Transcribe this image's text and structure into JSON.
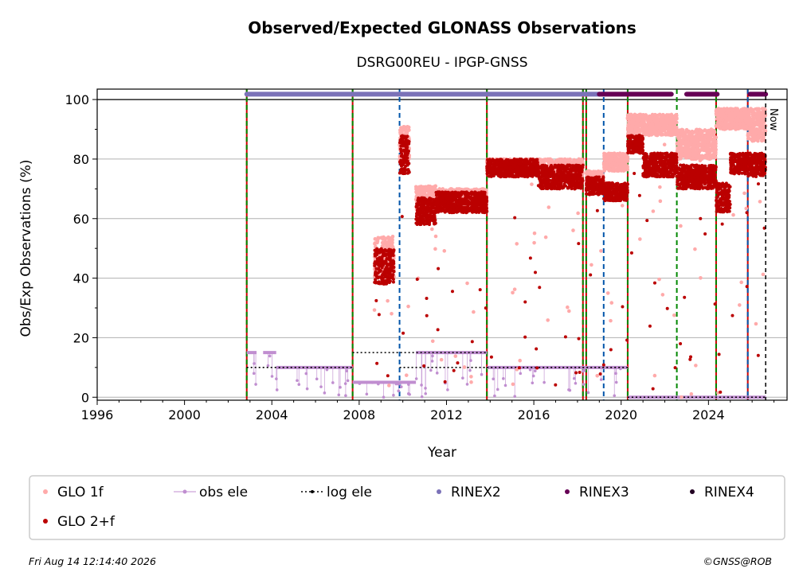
{
  "header": {
    "title": "Observed/Expected GLONASS Observations",
    "subtitle": "DSRG00REU - IPGP-GNSS"
  },
  "footer": {
    "timestamp": "Fri Aug 14 12:14:40 2026",
    "copyright": "©GNSS@ROB"
  },
  "chart_data": {
    "type": "scatter",
    "xlabel": "Year",
    "ylabel": "Obs/Exp Observations (%)",
    "xlim": [
      1996,
      2027.6
    ],
    "ylim": [
      -1,
      103.5
    ],
    "xticks": [
      1996,
      2000,
      2004,
      2008,
      2012,
      2016,
      2020,
      2024
    ],
    "yticks": [
      0,
      20,
      40,
      60,
      80,
      100
    ],
    "grid": "horizontal",
    "now_label": "Now",
    "now_x": 2026.62,
    "legend": {
      "placement": "bottom",
      "entries": [
        {
          "name": "GLO 1f",
          "color": "#ffaaaa",
          "marker": "dot"
        },
        {
          "name": "obs ele",
          "color": "#c08ed0",
          "marker": "line-dot"
        },
        {
          "name": "log ele",
          "color": "#000000",
          "marker": "dotted-line"
        },
        {
          "name": "RINEX2",
          "color": "#7b72b8",
          "marker": "dot"
        },
        {
          "name": "RINEX3",
          "color": "#660055",
          "marker": "dot"
        },
        {
          "name": "RINEX4",
          "color": "#220022",
          "marker": "dot"
        },
        {
          "name": "GLO 2+f",
          "color": "#bb0000",
          "marker": "dot"
        }
      ]
    },
    "event_lines": [
      {
        "x": 2002.85,
        "color": "#008800",
        "style": "dashed",
        "overlay": "#cc0000"
      },
      {
        "x": 2007.7,
        "color": "#008800",
        "style": "dashed",
        "overlay": "#cc0000"
      },
      {
        "x": 2009.85,
        "color": "#0055aa",
        "style": "dashed"
      },
      {
        "x": 2013.85,
        "color": "#008800",
        "style": "dashed",
        "overlay": "#cc0000"
      },
      {
        "x": 2018.25,
        "color": "#008800",
        "style": "dashed",
        "overlay": "#cc0000"
      },
      {
        "x": 2018.4,
        "color": "#008800",
        "style": "dashed",
        "overlay": "#cc0000"
      },
      {
        "x": 2019.2,
        "color": "#0055aa",
        "style": "dashed"
      },
      {
        "x": 2020.3,
        "color": "#008800",
        "style": "dashed",
        "overlay": "#cc0000"
      },
      {
        "x": 2022.55,
        "color": "#008800",
        "style": "dashed"
      },
      {
        "x": 2024.35,
        "color": "#008800",
        "style": "dashed",
        "overlay": "#cc0000"
      },
      {
        "x": 2025.8,
        "color": "#0055aa",
        "style": "dashed",
        "overlay": "#cc0000"
      }
    ],
    "log_ele": [
      {
        "x0": 2002.85,
        "x1": 2007.7,
        "y": 10
      },
      {
        "x0": 2007.7,
        "x1": 2013.85,
        "y": 15
      },
      {
        "x0": 2009.85,
        "x1": 2013.85,
        "y": 10
      },
      {
        "x0": 2013.85,
        "x1": 2020.3,
        "y": 10
      },
      {
        "x0": 2020.3,
        "x1": 2026.62,
        "y": 0
      }
    ],
    "obs_ele": [
      {
        "x0": 2002.85,
        "x1": 2003.3,
        "y": 15
      },
      {
        "x0": 2003.6,
        "x1": 2004.2,
        "y": 15
      },
      {
        "x0": 2004.2,
        "x1": 2007.7,
        "y": 10
      },
      {
        "x0": 2007.7,
        "x1": 2010.6,
        "y": 5
      },
      {
        "x0": 2010.6,
        "x1": 2013.85,
        "y": 15
      },
      {
        "x0": 2013.85,
        "x1": 2020.3,
        "y": 10
      },
      {
        "x0": 2020.3,
        "x1": 2026.62,
        "y": 0
      }
    ],
    "rinex_bars": [
      {
        "format": "RINEX2",
        "x0": 2002.85,
        "x1": 2019.0,
        "y": 101.8
      },
      {
        "format": "RINEX3",
        "x0": 2019.0,
        "x1": 2022.3,
        "y": 101.8
      },
      {
        "format": "RINEX3",
        "x0": 2023.0,
        "x1": 2024.4,
        "y": 101.8
      },
      {
        "format": "RINEX3",
        "x0": 2025.9,
        "x1": 2026.62,
        "y": 101.8
      }
    ],
    "glo_1f_segments": [
      {
        "x0": 2008.7,
        "x1": 2009.6,
        "ymin": 40,
        "ymax": 54
      },
      {
        "x0": 2009.85,
        "x1": 2010.3,
        "ymin": 78,
        "ymax": 91
      },
      {
        "x0": 2010.6,
        "x1": 2011.5,
        "ymin": 62,
        "ymax": 71
      },
      {
        "x0": 2011.5,
        "x1": 2013.85,
        "ymin": 64,
        "ymax": 70
      },
      {
        "x0": 2013.85,
        "x1": 2016.2,
        "ymin": 76,
        "ymax": 80
      },
      {
        "x0": 2016.2,
        "x1": 2018.25,
        "ymin": 74,
        "ymax": 80
      },
      {
        "x0": 2018.4,
        "x1": 2019.2,
        "ymin": 70,
        "ymax": 76
      },
      {
        "x0": 2019.2,
        "x1": 2020.3,
        "ymin": 76,
        "ymax": 82
      },
      {
        "x0": 2020.3,
        "x1": 2022.55,
        "ymin": 88,
        "ymax": 95
      },
      {
        "x0": 2022.55,
        "x1": 2024.35,
        "ymin": 80,
        "ymax": 90
      },
      {
        "x0": 2024.35,
        "x1": 2025.8,
        "ymin": 90,
        "ymax": 97
      },
      {
        "x0": 2025.8,
        "x1": 2026.62,
        "ymin": 86,
        "ymax": 97
      }
    ],
    "glo_2f_segments": [
      {
        "x0": 2008.7,
        "x1": 2009.6,
        "ymin": 38,
        "ymax": 50
      },
      {
        "x0": 2009.85,
        "x1": 2010.3,
        "ymin": 75,
        "ymax": 88
      },
      {
        "x0": 2010.6,
        "x1": 2011.5,
        "ymin": 58,
        "ymax": 67
      },
      {
        "x0": 2011.5,
        "x1": 2013.85,
        "ymin": 62,
        "ymax": 69
      },
      {
        "x0": 2013.85,
        "x1": 2016.2,
        "ymin": 74,
        "ymax": 80
      },
      {
        "x0": 2016.2,
        "x1": 2018.25,
        "ymin": 70,
        "ymax": 78
      },
      {
        "x0": 2018.4,
        "x1": 2019.2,
        "ymin": 68,
        "ymax": 74
      },
      {
        "x0": 2019.2,
        "x1": 2020.3,
        "ymin": 66,
        "ymax": 72
      },
      {
        "x0": 2020.3,
        "x1": 2021.0,
        "ymin": 82,
        "ymax": 88
      },
      {
        "x0": 2021.0,
        "x1": 2022.55,
        "ymin": 74,
        "ymax": 82
      },
      {
        "x0": 2022.55,
        "x1": 2024.35,
        "ymin": 70,
        "ymax": 78
      },
      {
        "x0": 2024.35,
        "x1": 2025.0,
        "ymin": 62,
        "ymax": 72
      },
      {
        "x0": 2025.0,
        "x1": 2025.8,
        "ymin": 75,
        "ymax": 82
      },
      {
        "x0": 2025.8,
        "x1": 2026.62,
        "ymin": 74,
        "ymax": 82
      }
    ]
  }
}
